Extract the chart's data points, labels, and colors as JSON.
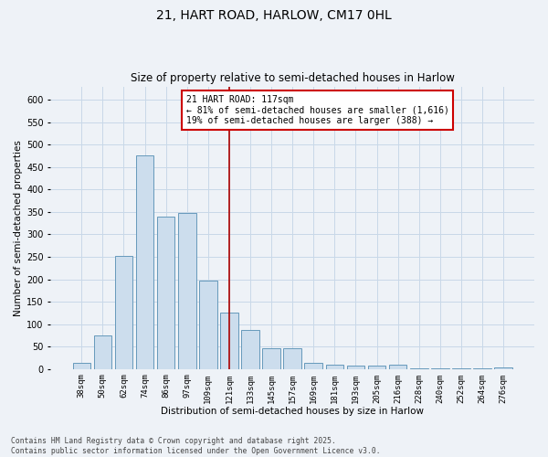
{
  "title_line1": "21, HART ROAD, HARLOW, CM17 0HL",
  "title_line2": "Size of property relative to semi-detached houses in Harlow",
  "xlabel": "Distribution of semi-detached houses by size in Harlow",
  "ylabel": "Number of semi-detached properties",
  "categories": [
    "38sqm",
    "50sqm",
    "62sqm",
    "74sqm",
    "86sqm",
    "97sqm",
    "109sqm",
    "121sqm",
    "133sqm",
    "145sqm",
    "157sqm",
    "169sqm",
    "181sqm",
    "193sqm",
    "205sqm",
    "216sqm",
    "228sqm",
    "240sqm",
    "252sqm",
    "264sqm",
    "276sqm"
  ],
  "values": [
    13,
    75,
    253,
    476,
    340,
    347,
    197,
    125,
    87,
    47,
    47,
    14,
    9,
    7,
    8,
    10,
    2,
    2,
    1,
    1,
    3
  ],
  "bar_color": "#ccdded",
  "bar_edge_color": "#6699bb",
  "grid_color": "#c8d8e8",
  "line_color": "#aa0000",
  "line_x_index": 7.0,
  "annotation_text": "21 HART ROAD: 117sqm\n← 81% of semi-detached houses are smaller (1,616)\n19% of semi-detached houses are larger (388) →",
  "annotation_box_facecolor": "#ffffff",
  "annotation_box_edgecolor": "#cc0000",
  "footer_text": "Contains HM Land Registry data © Crown copyright and database right 2025.\nContains public sector information licensed under the Open Government Licence v3.0.",
  "ylim": [
    0,
    630
  ],
  "yticks": [
    0,
    50,
    100,
    150,
    200,
    250,
    300,
    350,
    400,
    450,
    500,
    550,
    600
  ],
  "background_color": "#eef2f7",
  "title1_fontsize": 10,
  "title2_fontsize": 8.5,
  "xlabel_fontsize": 7.5,
  "ylabel_fontsize": 7.5,
  "xtick_fontsize": 6.5,
  "ytick_fontsize": 7,
  "annotation_fontsize": 7,
  "footer_fontsize": 5.8
}
